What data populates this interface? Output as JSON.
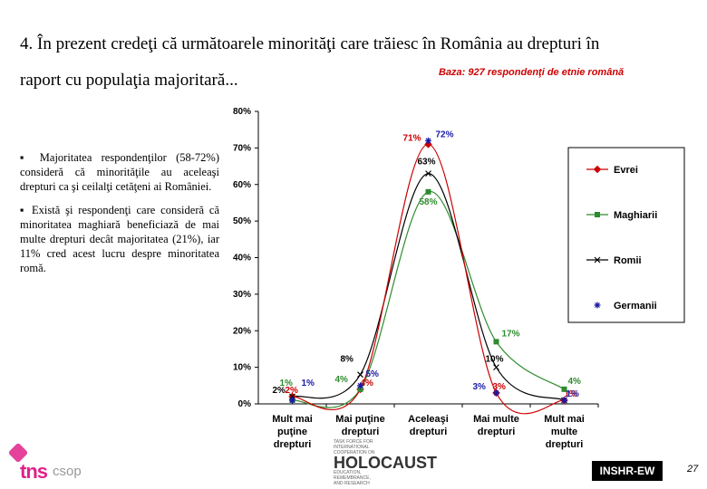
{
  "slide": {
    "title_line1": "4. În prezent credeţi că următoarele minorităţi care trăiesc în România au drepturi în",
    "title_line2": "raport cu populaţia majoritară...",
    "base_note": "Baza: 927 respondenţi de etnie română",
    "bullet1": "▪ Majoritatea respondenţilor (58-72%) consideră că minorităţile au aceleaşi drepturi ca şi ceilalţi cetăţeni ai României.",
    "bullet2": "▪ Există şi respondenţi care consideră că minoritatea maghiară beneficiază de mai multe drepturi decât majoritatea (21%), iar 11% cred acest lucru despre minoritatea romă.",
    "logo_tns": "tns",
    "logo_csop": "csop",
    "taskforce_line1": "TASK FORCE FOR INTERNATIONAL COOPERATION ON",
    "taskforce_big": "HOLOCAUST",
    "taskforce_line2": "EDUCATION, REMEMBRANCE, AND RESEARCH",
    "badge": "INSHR-EW",
    "page_number": "27"
  },
  "chart_data": {
    "type": "line",
    "title": "",
    "xlabel": "",
    "ylabel": "",
    "ylim": [
      0,
      80
    ],
    "yticks": [
      "0%",
      "10%",
      "20%",
      "30%",
      "40%",
      "50%",
      "60%",
      "70%",
      "80%"
    ],
    "categories": [
      "Mult mai puţine drepturi",
      "Mai puţine drepturi",
      "Aceleaşi drepturi",
      "Mai multe drepturi",
      "Mult mai multe drepturi"
    ],
    "grid": false,
    "legend_position": "right",
    "series": [
      {
        "name": "Evrei",
        "color": "#cc0000",
        "marker": "diamond",
        "values": [
          2,
          4,
          71,
          3,
          1
        ],
        "labels": [
          "2%",
          "4%",
          "71%",
          "3%",
          "1%"
        ]
      },
      {
        "name": "Maghiarii",
        "color": "#2e8b2e",
        "marker": "square",
        "values": [
          1,
          4,
          58,
          17,
          4
        ],
        "labels": [
          "1%",
          "4%",
          "58%",
          "17%",
          "4%"
        ]
      },
      {
        "name": "Romii",
        "color": "#000000",
        "marker": "x",
        "values": [
          2,
          8,
          63,
          10,
          1
        ],
        "labels": [
          "2%",
          "8%",
          "63%",
          "10%",
          ""
        ]
      },
      {
        "name": "Germanii",
        "color": "#1a1aa6",
        "marker": "star",
        "values": [
          1,
          5,
          72,
          3,
          1
        ],
        "labels": [
          "1%",
          "5%",
          "72%",
          "3%",
          "1%"
        ]
      }
    ]
  }
}
